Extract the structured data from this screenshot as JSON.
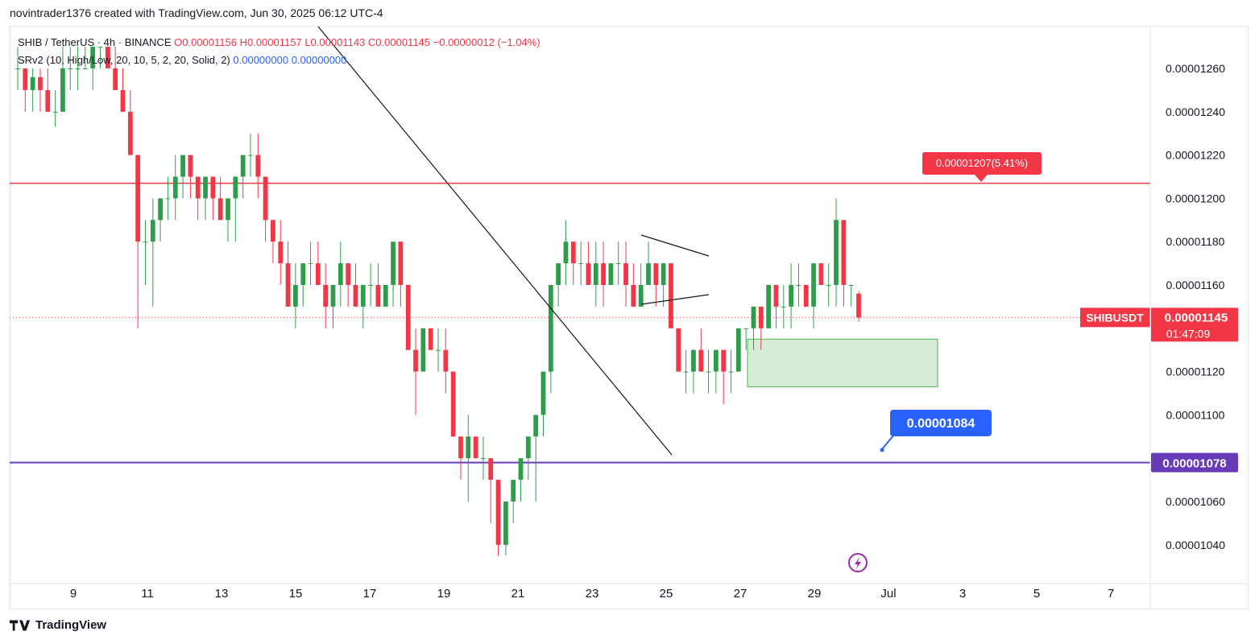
{
  "header": {
    "attribution": "novintrader1376 created with TradingView.com, Jun 30, 2025 06:12 UTC-4"
  },
  "legend": {
    "symbol": "SHIB / TetherUS · 4h · BINANCE",
    "open": "O0.00001156",
    "high": "H0.00001157",
    "low": "L0.00001143",
    "close": "C0.00001145",
    "change": "−0.00000012 (−1.04%)",
    "indicator": "SRv2 (10, High/Low, 20, 10, 5, 2, 20, Solid, 2)",
    "indicator_val1": "0.00000000",
    "indicator_val2": "0.00000000"
  },
  "footer": {
    "brand": "TradingView"
  },
  "colors": {
    "up": "#2e9d4a",
    "down": "#f23645",
    "resistance": "#f23645",
    "support": "#673ab7",
    "callout": "#2962ff",
    "zone": "#c8e6c9"
  },
  "chart_data": {
    "type": "candlestick",
    "symbol": "SHIBUSDT",
    "ylim": [
      1.03e-05,
      1.27e-05
    ],
    "y_ticks": [
      "0.00001260",
      "0.00001240",
      "0.00001220",
      "0.00001200",
      "0.00001180",
      "0.00001160",
      "0.00001120",
      "0.00001100",
      "0.00001060",
      "0.00001040"
    ],
    "x_ticks": [
      "9",
      "11",
      "13",
      "15",
      "17",
      "19",
      "21",
      "23",
      "25",
      "27",
      "29",
      "Jul",
      "3",
      "5",
      "7"
    ],
    "last_price": {
      "label": "SHIBUSDT",
      "value": "0.00001145",
      "countdown": "01:47:09",
      "price": 1.145e-05
    },
    "resistance": {
      "price": 1.207e-05,
      "label": "0.00001207(5.41%)"
    },
    "support": {
      "price": 1.078e-05,
      "label": "0.00001078"
    },
    "callout": {
      "label": "0.00001084"
    },
    "candles": [
      [
        1.26e-05,
        1.27e-05,
        1.25e-05,
        1.26e-05
      ],
      [
        1.26e-05,
        1.26e-05,
        1.24e-05,
        1.25e-05
      ],
      [
        1.25e-05,
        1.26e-05,
        1.24e-05,
        1.256e-05
      ],
      [
        1.256e-05,
        1.26e-05,
        1.24e-05,
        1.25e-05
      ],
      [
        1.25e-05,
        1.26e-05,
        1.24e-05,
        1.24e-05
      ],
      [
        1.24e-05,
        1.25e-05,
        1.233e-05,
        1.24e-05
      ],
      [
        1.24e-05,
        1.27e-05,
        1.24e-05,
        1.26e-05
      ],
      [
        1.26e-05,
        1.27e-05,
        1.25e-05,
        1.26e-05
      ],
      [
        1.26e-05,
        1.27e-05,
        1.25e-05,
        1.26e-05
      ],
      [
        1.26e-05,
        1.27e-05,
        1.26e-05,
        1.26e-05
      ],
      [
        1.26e-05,
        1.27e-05,
        1.25e-05,
        1.27e-05
      ],
      [
        1.27e-05,
        1.27e-05,
        1.26e-05,
        1.27e-05
      ],
      [
        1.27e-05,
        1.27e-05,
        1.26e-05,
        1.26e-05
      ],
      [
        1.26e-05,
        1.27e-05,
        1.25e-05,
        1.25e-05
      ],
      [
        1.25e-05,
        1.26e-05,
        1.24e-05,
        1.24e-05
      ],
      [
        1.24e-05,
        1.25e-05,
        1.22e-05,
        1.22e-05
      ],
      [
        1.22e-05,
        1.22e-05,
        1.14e-05,
        1.18e-05
      ],
      [
        1.18e-05,
        1.19e-05,
        1.16e-05,
        1.18e-05
      ],
      [
        1.18e-05,
        1.2e-05,
        1.15e-05,
        1.19e-05
      ],
      [
        1.19e-05,
        1.2e-05,
        1.18e-05,
        1.2e-05
      ],
      [
        1.2e-05,
        1.21e-05,
        1.19e-05,
        1.2e-05
      ],
      [
        1.2e-05,
        1.22e-05,
        1.19e-05,
        1.21e-05
      ],
      [
        1.21e-05,
        1.22e-05,
        1.2e-05,
        1.22e-05
      ],
      [
        1.22e-05,
        1.22e-05,
        1.2e-05,
        1.21e-05
      ],
      [
        1.21e-05,
        1.21e-05,
        1.19e-05,
        1.2e-05
      ],
      [
        1.2e-05,
        1.21e-05,
        1.19e-05,
        1.21e-05
      ],
      [
        1.21e-05,
        1.21e-05,
        1.19e-05,
        1.2e-05
      ],
      [
        1.2e-05,
        1.21e-05,
        1.19e-05,
        1.19e-05
      ],
      [
        1.19e-05,
        1.2e-05,
        1.18e-05,
        1.2e-05
      ],
      [
        1.2e-05,
        1.21e-05,
        1.18e-05,
        1.21e-05
      ],
      [
        1.21e-05,
        1.22e-05,
        1.2e-05,
        1.22e-05
      ],
      [
        1.22e-05,
        1.23e-05,
        1.21e-05,
        1.22e-05
      ],
      [
        1.22e-05,
        1.23e-05,
        1.2e-05,
        1.21e-05
      ],
      [
        1.21e-05,
        1.21e-05,
        1.18e-05,
        1.19e-05
      ],
      [
        1.19e-05,
        1.19e-05,
        1.17e-05,
        1.18e-05
      ],
      [
        1.18e-05,
        1.19e-05,
        1.16e-05,
        1.17e-05
      ],
      [
        1.17e-05,
        1.18e-05,
        1.15e-05,
        1.15e-05
      ],
      [
        1.15e-05,
        1.17e-05,
        1.14e-05,
        1.16e-05
      ],
      [
        1.16e-05,
        1.17e-05,
        1.15e-05,
        1.17e-05
      ],
      [
        1.17e-05,
        1.18e-05,
        1.16e-05,
        1.17e-05
      ],
      [
        1.17e-05,
        1.18e-05,
        1.16e-05,
        1.16e-05
      ],
      [
        1.16e-05,
        1.17e-05,
        1.14e-05,
        1.15e-05
      ],
      [
        1.15e-05,
        1.16e-05,
        1.14e-05,
        1.16e-05
      ],
      [
        1.16e-05,
        1.18e-05,
        1.15e-05,
        1.17e-05
      ],
      [
        1.17e-05,
        1.17e-05,
        1.15e-05,
        1.16e-05
      ],
      [
        1.16e-05,
        1.17e-05,
        1.15e-05,
        1.15e-05
      ],
      [
        1.15e-05,
        1.16e-05,
        1.14e-05,
        1.16e-05
      ],
      [
        1.16e-05,
        1.17e-05,
        1.15e-05,
        1.16e-05
      ],
      [
        1.16e-05,
        1.17e-05,
        1.15e-05,
        1.15e-05
      ],
      [
        1.15e-05,
        1.16e-05,
        1.15e-05,
        1.16e-05
      ],
      [
        1.16e-05,
        1.18e-05,
        1.15e-05,
        1.18e-05
      ],
      [
        1.18e-05,
        1.18e-05,
        1.15e-05,
        1.16e-05
      ],
      [
        1.16e-05,
        1.16e-05,
        1.13e-05,
        1.13e-05
      ],
      [
        1.13e-05,
        1.14e-05,
        1.1e-05,
        1.12e-05
      ],
      [
        1.12e-05,
        1.14e-05,
        1.12e-05,
        1.14e-05
      ],
      [
        1.14e-05,
        1.14e-05,
        1.13e-05,
        1.13e-05
      ],
      [
        1.13e-05,
        1.14e-05,
        1.12e-05,
        1.13e-05
      ],
      [
        1.13e-05,
        1.14e-05,
        1.11e-05,
        1.12e-05
      ],
      [
        1.12e-05,
        1.12e-05,
        1.09e-05,
        1.09e-05
      ],
      [
        1.09e-05,
        1.09e-05,
        1.07e-05,
        1.08e-05
      ],
      [
        1.08e-05,
        1.1e-05,
        1.06e-05,
        1.09e-05
      ],
      [
        1.09e-05,
        1.09e-05,
        1.08e-05,
        1.08e-05
      ],
      [
        1.08e-05,
        1.09e-05,
        1.07e-05,
        1.08e-05
      ],
      [
        1.08e-05,
        1.08e-05,
        1.05e-05,
        1.07e-05
      ],
      [
        1.07e-05,
        1.07e-05,
        1.035e-05,
        1.04e-05
      ],
      [
        1.04e-05,
        1.06e-05,
        1.035e-05,
        1.06e-05
      ],
      [
        1.06e-05,
        1.07e-05,
        1.05e-05,
        1.07e-05
      ],
      [
        1.07e-05,
        1.08e-05,
        1.06e-05,
        1.08e-05
      ],
      [
        1.08e-05,
        1.09e-05,
        1.07e-05,
        1.09e-05
      ],
      [
        1.09e-05,
        1.1e-05,
        1.06e-05,
        1.1e-05
      ],
      [
        1.1e-05,
        1.12e-05,
        1.09e-05,
        1.12e-05
      ],
      [
        1.12e-05,
        1.16e-05,
        1.11e-05,
        1.16e-05
      ],
      [
        1.16e-05,
        1.17e-05,
        1.15e-05,
        1.17e-05
      ],
      [
        1.17e-05,
        1.19e-05,
        1.16e-05,
        1.18e-05
      ],
      [
        1.18e-05,
        1.18e-05,
        1.16e-05,
        1.17e-05
      ],
      [
        1.17e-05,
        1.18e-05,
        1.16e-05,
        1.17e-05
      ],
      [
        1.17e-05,
        1.18e-05,
        1.16e-05,
        1.16e-05
      ],
      [
        1.16e-05,
        1.18e-05,
        1.15e-05,
        1.17e-05
      ],
      [
        1.17e-05,
        1.18e-05,
        1.15e-05,
        1.16e-05
      ],
      [
        1.16e-05,
        1.17e-05,
        1.16e-05,
        1.17e-05
      ],
      [
        1.17e-05,
        1.18e-05,
        1.16e-05,
        1.17e-05
      ],
      [
        1.17e-05,
        1.18e-05,
        1.15e-05,
        1.16e-05
      ],
      [
        1.16e-05,
        1.17e-05,
        1.15e-05,
        1.15e-05
      ],
      [
        1.15e-05,
        1.17e-05,
        1.15e-05,
        1.16e-05
      ],
      [
        1.16e-05,
        1.18e-05,
        1.16e-05,
        1.17e-05
      ],
      [
        1.17e-05,
        1.17e-05,
        1.15e-05,
        1.16e-05
      ],
      [
        1.16e-05,
        1.17e-05,
        1.15e-05,
        1.17e-05
      ],
      [
        1.17e-05,
        1.17e-05,
        1.14e-05,
        1.14e-05
      ],
      [
        1.14e-05,
        1.14e-05,
        1.12e-05,
        1.12e-05
      ],
      [
        1.12e-05,
        1.13e-05,
        1.11e-05,
        1.12e-05
      ],
      [
        1.12e-05,
        1.13e-05,
        1.11e-05,
        1.13e-05
      ],
      [
        1.13e-05,
        1.14e-05,
        1.12e-05,
        1.12e-05
      ],
      [
        1.12e-05,
        1.13e-05,
        1.11e-05,
        1.12e-05
      ],
      [
        1.12e-05,
        1.13e-05,
        1.11e-05,
        1.13e-05
      ],
      [
        1.13e-05,
        1.13e-05,
        1.105e-05,
        1.12e-05
      ],
      [
        1.12e-05,
        1.13e-05,
        1.11e-05,
        1.12e-05
      ],
      [
        1.12e-05,
        1.14e-05,
        1.12e-05,
        1.14e-05
      ],
      [
        1.14e-05,
        1.14e-05,
        1.13e-05,
        1.14e-05
      ],
      [
        1.14e-05,
        1.15e-05,
        1.13e-05,
        1.15e-05
      ],
      [
        1.15e-05,
        1.15e-05,
        1.13e-05,
        1.14e-05
      ],
      [
        1.14e-05,
        1.16e-05,
        1.14e-05,
        1.16e-05
      ],
      [
        1.16e-05,
        1.16e-05,
        1.14e-05,
        1.15e-05
      ],
      [
        1.15e-05,
        1.16e-05,
        1.14e-05,
        1.15e-05
      ],
      [
        1.15e-05,
        1.17e-05,
        1.14e-05,
        1.16e-05
      ],
      [
        1.16e-05,
        1.17e-05,
        1.15e-05,
        1.16e-05
      ],
      [
        1.16e-05,
        1.16e-05,
        1.15e-05,
        1.15e-05
      ],
      [
        1.15e-05,
        1.17e-05,
        1.14e-05,
        1.17e-05
      ],
      [
        1.17e-05,
        1.17e-05,
        1.16e-05,
        1.16e-05
      ],
      [
        1.16e-05,
        1.17e-05,
        1.15e-05,
        1.16e-05
      ],
      [
        1.16e-05,
        1.2e-05,
        1.15e-05,
        1.19e-05
      ],
      [
        1.19e-05,
        1.19e-05,
        1.15e-05,
        1.16e-05
      ],
      [
        1.16e-05,
        1.16e-05,
        1.15e-05,
        1.16e-05
      ],
      [
        1.156e-05,
        1.157e-05,
        1.143e-05,
        1.145e-05
      ]
    ]
  }
}
